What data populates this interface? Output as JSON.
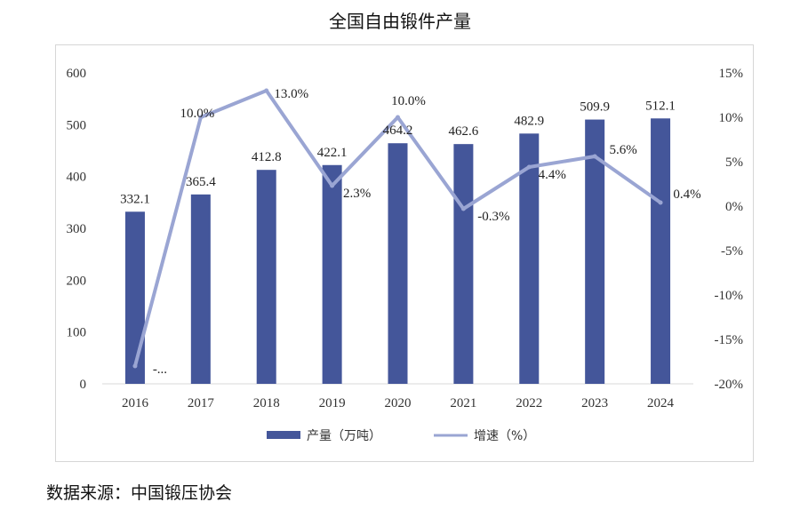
{
  "title": "全国自由锻件产量",
  "source": "数据来源：中国锻压协会",
  "colors": {
    "bar": "#44569a",
    "line": "#9aa5d3",
    "grid": "#d9d9d9"
  },
  "chart_data": {
    "type": "bar+line",
    "title": "全国自由锻件产量",
    "categories": [
      "2016",
      "2017",
      "2018",
      "2019",
      "2020",
      "2021",
      "2022",
      "2023",
      "2024"
    ],
    "series": [
      {
        "name": "产量（万吨）",
        "type": "bar",
        "axis": "left",
        "values": [
          332.1,
          365.4,
          412.8,
          422.1,
          464.2,
          462.6,
          482.9,
          509.9,
          512.1
        ],
        "labels": [
          "332.1",
          "365.4",
          "412.8",
          "422.1",
          "464.2",
          "462.6",
          "482.9",
          "509.9",
          "512.1"
        ]
      },
      {
        "name": "增速（%）",
        "type": "line",
        "axis": "right",
        "values": [
          -18.0,
          10.0,
          13.0,
          2.3,
          10.0,
          -0.3,
          4.4,
          5.6,
          0.4
        ],
        "labels": [
          "-...",
          "10.0%",
          "13.0%",
          "2.3%",
          "10.0%",
          "-0.3%",
          "4.4%",
          "5.6%",
          "0.4%"
        ]
      }
    ],
    "y_left": {
      "min": 0,
      "max": 600,
      "ticks": [
        "0",
        "100",
        "200",
        "300",
        "400",
        "500",
        "600"
      ]
    },
    "y_right": {
      "min": -20,
      "max": 15,
      "ticks": [
        "-20%",
        "-15%",
        "-10%",
        "-5%",
        "0%",
        "5%",
        "10%",
        "15%"
      ]
    },
    "grid": false,
    "legend": "bottom"
  }
}
